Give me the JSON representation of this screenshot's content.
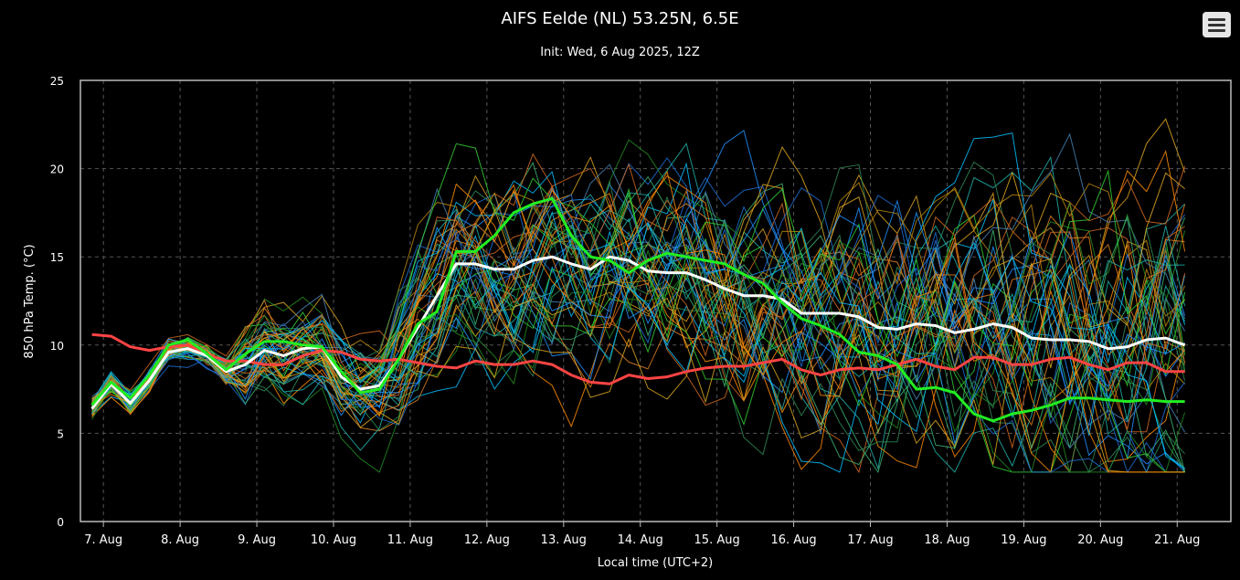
{
  "page": {
    "title": "AIFS Eelde (NL) 53.25N, 6.5E",
    "subtitle": "Init: Wed, 6 Aug 2025, 12Z",
    "menu_icon": "hamburger-menu-icon"
  },
  "chart_data": {
    "type": "line",
    "title": "AIFS Eelde (NL) 53.25N, 6.5E",
    "subtitle": "Init: Wed, 6 Aug 2025, 12Z",
    "xlabel": "Local time (UTC+2)",
    "ylabel": "850 hPa Temp. (°C)",
    "ylim": [
      0,
      25
    ],
    "yticks": [
      0,
      5,
      10,
      15,
      20,
      25
    ],
    "xlim": [
      6.7,
      21.7
    ],
    "xtick_values": [
      7,
      8,
      9,
      10,
      11,
      12,
      13,
      14,
      15,
      16,
      17,
      18,
      19,
      20,
      21
    ],
    "xtick_labels": [
      "7. Aug",
      "8. Aug",
      "9. Aug",
      "10. Aug",
      "11. Aug",
      "12. Aug",
      "13. Aug",
      "14. Aug",
      "15. Aug",
      "16. Aug",
      "17. Aug",
      "18. Aug",
      "19. Aug",
      "20. Aug",
      "21. Aug"
    ],
    "grid": true,
    "x_step_days": 0.25,
    "x_start": 6.85,
    "colors": {
      "background": "#000000",
      "grid": "#555555",
      "axis": "#bbbbbb",
      "text": "#ffffff"
    },
    "series": [
      {
        "color": "#ff4444",
        "width": 3,
        "values": [
          10.6,
          10.5,
          9.9,
          9.7,
          9.9,
          10.0,
          9.5,
          9.1,
          9.1,
          8.9,
          8.9,
          9.4,
          9.7,
          9.6,
          9.2,
          9.1,
          9.2,
          9.0,
          8.8,
          8.7,
          9.1,
          8.9,
          8.9,
          9.1,
          8.9,
          8.3,
          7.9,
          7.8,
          8.3,
          8.1,
          8.2,
          8.5,
          8.7,
          8.8,
          8.8,
          9.0,
          9.2,
          8.6,
          8.3,
          8.6,
          8.7,
          8.6,
          8.9,
          9.2,
          8.8,
          8.6,
          9.3,
          9.3,
          8.9,
          8.9,
          9.2,
          9.3,
          8.9,
          8.6,
          9.0,
          9.0,
          8.5,
          8.5
        ]
      },
      {
        "color": "#ffffff",
        "width": 3,
        "values": [
          6.4,
          7.8,
          6.7,
          8.0,
          9.6,
          9.8,
          9.4,
          8.5,
          8.9,
          9.7,
          9.4,
          9.8,
          9.9,
          8.2,
          7.5,
          7.7,
          9.2,
          11.0,
          12.8,
          14.6,
          14.6,
          14.3,
          14.3,
          14.8,
          15.0,
          14.6,
          14.3,
          15.0,
          14.8,
          14.2,
          14.1,
          14.1,
          13.7,
          13.2,
          12.8,
          12.8,
          12.6,
          11.8,
          11.8,
          11.8,
          11.6,
          11.0,
          10.9,
          11.2,
          11.1,
          10.7,
          10.9,
          11.2,
          11.0,
          10.4,
          10.3,
          10.3,
          10.2,
          9.8,
          9.9,
          10.3,
          10.4,
          10.0
        ]
      },
      {
        "color": "#22ee22",
        "width": 3,
        "values": [
          6.6,
          7.9,
          7.0,
          8.3,
          10.0,
          10.3,
          9.5,
          8.6,
          9.5,
          10.2,
          10.2,
          10.0,
          9.9,
          8.5,
          7.3,
          7.5,
          9.2,
          11.2,
          11.9,
          15.3,
          15.3,
          16.2,
          17.5,
          18.0,
          18.3,
          16.2,
          15.0,
          14.8,
          14.1,
          14.8,
          15.2,
          15.0,
          14.8,
          14.6,
          14.0,
          13.5,
          12.4,
          11.5,
          11.1,
          10.6,
          9.6,
          9.4,
          8.9,
          7.5,
          7.6,
          7.3,
          6.1,
          5.7,
          6.1,
          6.3,
          6.6,
          7.0,
          7.0,
          6.9,
          6.8,
          6.9,
          6.8,
          6.8
        ]
      }
    ],
    "ensemble": {
      "members": 50,
      "palette": [
        "#1e90ff",
        "#00bfff",
        "#20b2aa",
        "#2e8b57",
        "#32cd32",
        "#daa520",
        "#ff8c00",
        "#d2691e",
        "#4682b4",
        "#1f6fd6",
        "#3cb371",
        "#b8860b",
        "#228b22",
        "#e08020"
      ]
    }
  }
}
